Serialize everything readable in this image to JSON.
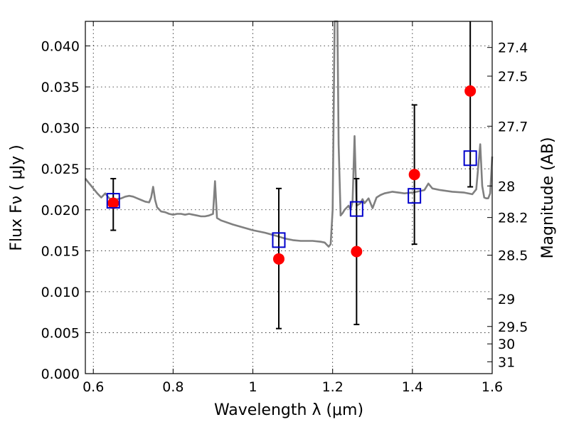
{
  "chart_data": {
    "type": "scatter",
    "xlabel": "Wavelength  λ (μm)",
    "ylabel": "Flux  Fν  ( μJy )",
    "y2label": "Magnitude (AB)",
    "xlim": [
      0.58,
      1.6
    ],
    "ylim": [
      0.0,
      0.043
    ],
    "grid": true,
    "x_ticks": [
      {
        "value": 0.6,
        "label": "0.6"
      },
      {
        "value": 0.8,
        "label": "0.8"
      },
      {
        "value": 1.0,
        "label": "1"
      },
      {
        "value": 1.2,
        "label": "1.2"
      },
      {
        "value": 1.4,
        "label": "1.4"
      },
      {
        "value": 1.6,
        "label": "1.6"
      }
    ],
    "y_ticks": [
      {
        "value": 0.0,
        "label": "0.000"
      },
      {
        "value": 0.005,
        "label": "0.005"
      },
      {
        "value": 0.01,
        "label": "0.010"
      },
      {
        "value": 0.015,
        "label": "0.015"
      },
      {
        "value": 0.02,
        "label": "0.020"
      },
      {
        "value": 0.025,
        "label": "0.025"
      },
      {
        "value": 0.03,
        "label": "0.030"
      },
      {
        "value": 0.035,
        "label": "0.035"
      },
      {
        "value": 0.04,
        "label": "0.040"
      }
    ],
    "y2_ticks": [
      {
        "value": 27.4,
        "label": "27.4"
      },
      {
        "value": 27.5,
        "label": "27.5"
      },
      {
        "value": 27.7,
        "label": "27.7"
      },
      {
        "value": 28.0,
        "label": "28"
      },
      {
        "value": 28.2,
        "label": "28.2"
      },
      {
        "value": 28.5,
        "label": "28.5"
      },
      {
        "value": 29.0,
        "label": "29"
      },
      {
        "value": 29.5,
        "label": "29.5"
      },
      {
        "value": 30.0,
        "label": "30"
      },
      {
        "value": 31.0,
        "label": "31"
      }
    ],
    "series": [
      {
        "kind": "line",
        "color": "#808080",
        "x": [
          0.58,
          0.59,
          0.6,
          0.61,
          0.62,
          0.63,
          0.64,
          0.65,
          0.66,
          0.67,
          0.68,
          0.69,
          0.7,
          0.71,
          0.72,
          0.73,
          0.74,
          0.745,
          0.75,
          0.755,
          0.76,
          0.77,
          0.78,
          0.79,
          0.8,
          0.81,
          0.82,
          0.83,
          0.84,
          0.85,
          0.86,
          0.87,
          0.88,
          0.89,
          0.9,
          0.905,
          0.91,
          0.92,
          0.95,
          1.0,
          1.03,
          1.06,
          1.08,
          1.1,
          1.12,
          1.15,
          1.17,
          1.18,
          1.19,
          1.195,
          1.2,
          1.205,
          1.208,
          1.212,
          1.215,
          1.22,
          1.225,
          1.23,
          1.24,
          1.245,
          1.25,
          1.255,
          1.26,
          1.27,
          1.275,
          1.28,
          1.29,
          1.3,
          1.31,
          1.32,
          1.33,
          1.35,
          1.38,
          1.4,
          1.43,
          1.44,
          1.45,
          1.47,
          1.5,
          1.53,
          1.55,
          1.56,
          1.57,
          1.575,
          1.58,
          1.585,
          1.59,
          1.595,
          1.6
        ],
        "y": [
          0.0238,
          0.0232,
          0.0226,
          0.022,
          0.0215,
          0.022,
          0.0214,
          0.0212,
          0.0213,
          0.0214,
          0.0216,
          0.0217,
          0.0216,
          0.0214,
          0.0212,
          0.021,
          0.0209,
          0.0215,
          0.0228,
          0.0212,
          0.0203,
          0.0198,
          0.0197,
          0.0195,
          0.0194,
          0.0195,
          0.0195,
          0.0194,
          0.0195,
          0.0194,
          0.0193,
          0.0192,
          0.0192,
          0.0193,
          0.0195,
          0.0235,
          0.019,
          0.0187,
          0.0182,
          0.0175,
          0.0172,
          0.0168,
          0.0165,
          0.0163,
          0.0162,
          0.0162,
          0.0161,
          0.016,
          0.0155,
          0.0158,
          0.02,
          0.043,
          0.043,
          0.043,
          0.028,
          0.0193,
          0.0196,
          0.02,
          0.0205,
          0.02,
          0.021,
          0.029,
          0.0205,
          0.0208,
          0.0213,
          0.0208,
          0.0214,
          0.0202,
          0.0215,
          0.0218,
          0.022,
          0.0222,
          0.022,
          0.0221,
          0.0224,
          0.0232,
          0.0226,
          0.0224,
          0.0222,
          0.0221,
          0.0219,
          0.0225,
          0.028,
          0.0229,
          0.0215,
          0.0214,
          0.0214,
          0.022,
          0.0265
        ]
      },
      {
        "kind": "points",
        "marker": "circle",
        "color": "#ff0000",
        "x": [
          0.65,
          1.065,
          1.26,
          1.405,
          1.545
        ],
        "y": [
          0.0208,
          0.014,
          0.0149,
          0.0243,
          0.0345
        ],
        "yerr_low": [
          0.0175,
          0.0055,
          0.006,
          0.0158,
          0.0228
        ],
        "yerr_high": [
          0.0238,
          0.0226,
          0.0238,
          0.0328,
          0.043
        ]
      },
      {
        "kind": "points",
        "marker": "open-square",
        "color": "#0000cc",
        "x": [
          0.65,
          1.065,
          1.26,
          1.405,
          1.545
        ],
        "y": [
          0.0211,
          0.0163,
          0.0201,
          0.0217,
          0.0263
        ]
      }
    ]
  }
}
